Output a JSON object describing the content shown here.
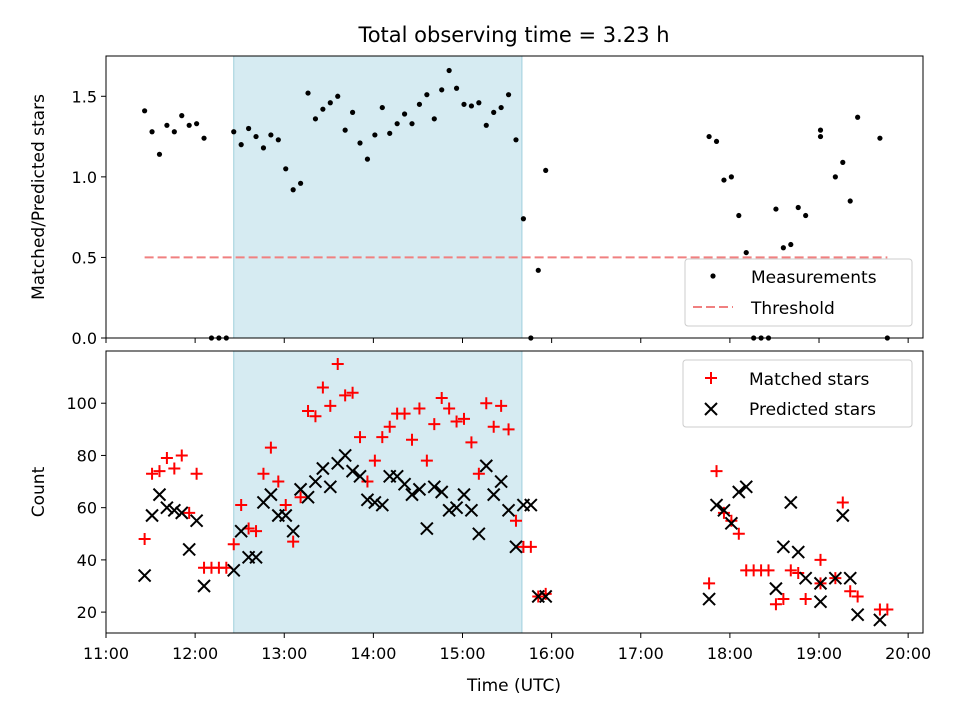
{
  "title": "Total observing time = 3.23 h",
  "x_axis": {
    "label": "Time (UTC)",
    "ticks": [
      "11:00",
      "12:00",
      "13:00",
      "14:00",
      "15:00",
      "16:00",
      "17:00",
      "18:00",
      "19:00",
      "20:00"
    ]
  },
  "chart_data": [
    {
      "type": "scatter",
      "ylabel": "Matched/Predicted stars",
      "ylim": [
        0,
        1.75
      ],
      "yticks": [
        "0.0",
        "0.5",
        "1.0",
        "1.5"
      ],
      "xlim": [
        "11:00",
        "20:10"
      ],
      "shaded_span": {
        "start": "12:26",
        "end": "15:40",
        "color": "#add8e6"
      },
      "legend": {
        "position": "lower-right",
        "entries": [
          "Measurements",
          "Threshold"
        ]
      },
      "threshold": {
        "name": "Threshold",
        "value": 0.5,
        "x_start": "11:26",
        "x_end": "19:46",
        "color": "#f08080"
      },
      "series": [
        {
          "name": "Measurements",
          "color": "#000000",
          "points": [
            [
              "11:26",
              1.41
            ],
            [
              "11:31",
              1.28
            ],
            [
              "11:36",
              1.14
            ],
            [
              "11:41",
              1.32
            ],
            [
              "11:46",
              1.28
            ],
            [
              "11:51",
              1.38
            ],
            [
              "11:56",
              1.32
            ],
            [
              "12:01",
              1.33
            ],
            [
              "12:06",
              1.24
            ],
            [
              "12:11",
              0
            ],
            [
              "12:16",
              0
            ],
            [
              "12:21",
              0
            ],
            [
              "12:26",
              1.28
            ],
            [
              "12:31",
              1.2
            ],
            [
              "12:36",
              1.3
            ],
            [
              "12:41",
              1.25
            ],
            [
              "12:46",
              1.18
            ],
            [
              "12:51",
              1.26
            ],
            [
              "12:56",
              1.23
            ],
            [
              "13:01",
              1.05
            ],
            [
              "13:06",
              0.92
            ],
            [
              "13:11",
              0.96
            ],
            [
              "13:16",
              1.52
            ],
            [
              "13:21",
              1.36
            ],
            [
              "13:26",
              1.42
            ],
            [
              "13:31",
              1.46
            ],
            [
              "13:36",
              1.5
            ],
            [
              "13:41",
              1.29
            ],
            [
              "13:46",
              1.4
            ],
            [
              "13:51",
              1.21
            ],
            [
              "13:56",
              1.11
            ],
            [
              "14:01",
              1.26
            ],
            [
              "14:06",
              1.43
            ],
            [
              "14:11",
              1.27
            ],
            [
              "14:16",
              1.33
            ],
            [
              "14:21",
              1.39
            ],
            [
              "14:26",
              1.33
            ],
            [
              "14:31",
              1.45
            ],
            [
              "14:36",
              1.51
            ],
            [
              "14:41",
              1.36
            ],
            [
              "14:46",
              1.54
            ],
            [
              "14:51",
              1.66
            ],
            [
              "14:56",
              1.55
            ],
            [
              "15:01",
              1.45
            ],
            [
              "15:06",
              1.44
            ],
            [
              "15:11",
              1.46
            ],
            [
              "15:16",
              1.32
            ],
            [
              "15:21",
              1.4
            ],
            [
              "15:26",
              1.43
            ],
            [
              "15:31",
              1.51
            ],
            [
              "15:36",
              1.23
            ],
            [
              "15:41",
              0.74
            ],
            [
              "15:46",
              0
            ],
            [
              "15:51",
              0.42
            ],
            [
              "15:56",
              1.04
            ],
            [
              "17:46",
              1.25
            ],
            [
              "17:51",
              1.22
            ],
            [
              "17:56",
              0.98
            ],
            [
              "18:01",
              1.0
            ],
            [
              "18:06",
              0.76
            ],
            [
              "18:11",
              0.53
            ],
            [
              "18:16",
              0
            ],
            [
              "18:21",
              0
            ],
            [
              "18:26",
              0
            ],
            [
              "18:31",
              0.8
            ],
            [
              "18:36",
              0.56
            ],
            [
              "18:41",
              0.58
            ],
            [
              "18:46",
              0.81
            ],
            [
              "18:51",
              0.76
            ],
            [
              "19:01",
              1.29
            ],
            [
              "19:01",
              1.25
            ],
            [
              "19:11",
              1.0
            ],
            [
              "19:16",
              1.09
            ],
            [
              "19:21",
              0.85
            ],
            [
              "19:26",
              1.37
            ],
            [
              "19:41",
              1.24
            ],
            [
              "19:46",
              0
            ]
          ]
        }
      ]
    },
    {
      "type": "scatter",
      "ylabel": "Count",
      "ylim": [
        12,
        120
      ],
      "yticks": [
        "20",
        "40",
        "60",
        "80",
        "100"
      ],
      "xlim": [
        "11:00",
        "20:10"
      ],
      "shaded_span": {
        "start": "12:26",
        "end": "15:40",
        "color": "#add8e6"
      },
      "legend": {
        "position": "top-right",
        "entries": [
          "Matched stars",
          "Predicted stars"
        ]
      },
      "series": [
        {
          "name": "Matched stars",
          "marker": "plus",
          "color": "#ff0000",
          "points": [
            [
              "11:26",
              48
            ],
            [
              "11:31",
              73
            ],
            [
              "11:36",
              74
            ],
            [
              "11:41",
              79
            ],
            [
              "11:46",
              75
            ],
            [
              "11:51",
              80
            ],
            [
              "11:56",
              58
            ],
            [
              "12:01",
              73
            ],
            [
              "12:06",
              37
            ],
            [
              "12:11",
              37
            ],
            [
              "12:16",
              37
            ],
            [
              "12:21",
              37
            ],
            [
              "12:26",
              46
            ],
            [
              "12:31",
              61
            ],
            [
              "12:36",
              52
            ],
            [
              "12:41",
              51
            ],
            [
              "12:46",
              73
            ],
            [
              "12:51",
              83
            ],
            [
              "12:56",
              70
            ],
            [
              "13:01",
              61
            ],
            [
              "13:06",
              47
            ],
            [
              "13:11",
              64
            ],
            [
              "13:16",
              97
            ],
            [
              "13:21",
              95
            ],
            [
              "13:26",
              106
            ],
            [
              "13:31",
              99
            ],
            [
              "13:36",
              115
            ],
            [
              "13:41",
              103
            ],
            [
              "13:46",
              104
            ],
            [
              "13:51",
              87
            ],
            [
              "13:56",
              70
            ],
            [
              "14:01",
              78
            ],
            [
              "14:06",
              87
            ],
            [
              "14:11",
              91
            ],
            [
              "14:16",
              96
            ],
            [
              "14:21",
              96
            ],
            [
              "14:26",
              86
            ],
            [
              "14:31",
              98
            ],
            [
              "14:36",
              78
            ],
            [
              "14:41",
              92
            ],
            [
              "14:46",
              102
            ],
            [
              "14:51",
              98
            ],
            [
              "14:56",
              93
            ],
            [
              "15:01",
              94
            ],
            [
              "15:06",
              85
            ],
            [
              "15:11",
              73
            ],
            [
              "15:16",
              100
            ],
            [
              "15:21",
              91
            ],
            [
              "15:26",
              99
            ],
            [
              "15:31",
              90
            ],
            [
              "15:36",
              55
            ],
            [
              "15:41",
              45
            ],
            [
              "15:46",
              45
            ],
            [
              "15:51",
              26
            ],
            [
              "15:56",
              27
            ],
            [
              "17:46",
              31
            ],
            [
              "17:51",
              74
            ],
            [
              "17:56",
              58
            ],
            [
              "18:01",
              55
            ],
            [
              "18:06",
              50
            ],
            [
              "18:11",
              36
            ],
            [
              "18:16",
              36
            ],
            [
              "18:21",
              36
            ],
            [
              "18:26",
              36
            ],
            [
              "18:31",
              23
            ],
            [
              "18:36",
              25
            ],
            [
              "18:41",
              36
            ],
            [
              "18:46",
              35
            ],
            [
              "18:51",
              25
            ],
            [
              "19:01",
              40
            ],
            [
              "19:01",
              31
            ],
            [
              "19:11",
              33
            ],
            [
              "19:16",
              62
            ],
            [
              "19:21",
              28
            ],
            [
              "19:26",
              26
            ],
            [
              "19:41",
              21
            ],
            [
              "19:46",
              21
            ]
          ]
        },
        {
          "name": "Predicted stars",
          "marker": "x",
          "color": "#000000",
          "points": [
            [
              "11:26",
              34
            ],
            [
              "11:31",
              57
            ],
            [
              "11:36",
              65
            ],
            [
              "11:41",
              60
            ],
            [
              "11:46",
              59
            ],
            [
              "11:51",
              58
            ],
            [
              "11:56",
              44
            ],
            [
              "12:01",
              55
            ],
            [
              "12:06",
              30
            ],
            [
              "12:26",
              36
            ],
            [
              "12:31",
              51
            ],
            [
              "12:36",
              41
            ],
            [
              "12:41",
              41
            ],
            [
              "12:46",
              62
            ],
            [
              "12:51",
              65
            ],
            [
              "12:56",
              57
            ],
            [
              "13:01",
              57
            ],
            [
              "13:06",
              51
            ],
            [
              "13:11",
              67
            ],
            [
              "13:16",
              64
            ],
            [
              "13:21",
              70
            ],
            [
              "13:26",
              75
            ],
            [
              "13:31",
              68
            ],
            [
              "13:36",
              77
            ],
            [
              "13:41",
              80
            ],
            [
              "13:46",
              74
            ],
            [
              "13:51",
              72
            ],
            [
              "13:56",
              63
            ],
            [
              "14:01",
              62
            ],
            [
              "14:06",
              61
            ],
            [
              "14:11",
              72
            ],
            [
              "14:16",
              72
            ],
            [
              "14:21",
              69
            ],
            [
              "14:26",
              65
            ],
            [
              "14:31",
              67
            ],
            [
              "14:36",
              52
            ],
            [
              "14:41",
              68
            ],
            [
              "14:46",
              66
            ],
            [
              "14:51",
              59
            ],
            [
              "14:56",
              60
            ],
            [
              "15:01",
              65
            ],
            [
              "15:06",
              59
            ],
            [
              "15:11",
              50
            ],
            [
              "15:16",
              76
            ],
            [
              "15:21",
              65
            ],
            [
              "15:26",
              70
            ],
            [
              "15:31",
              59
            ],
            [
              "15:36",
              45
            ],
            [
              "15:41",
              61
            ],
            [
              "15:46",
              61
            ],
            [
              "15:51",
              26
            ],
            [
              "15:56",
              26
            ],
            [
              "17:46",
              25
            ],
            [
              "17:51",
              61
            ],
            [
              "17:56",
              59
            ],
            [
              "18:01",
              54
            ],
            [
              "18:06",
              66
            ],
            [
              "18:11",
              68
            ],
            [
              "18:31",
              29
            ],
            [
              "18:36",
              45
            ],
            [
              "18:41",
              62
            ],
            [
              "18:46",
              43
            ],
            [
              "18:51",
              33
            ],
            [
              "19:01",
              31
            ],
            [
              "19:01",
              24
            ],
            [
              "19:11",
              33
            ],
            [
              "19:16",
              57
            ],
            [
              "19:21",
              33
            ],
            [
              "19:26",
              19
            ],
            [
              "19:41",
              17
            ]
          ]
        }
      ]
    }
  ]
}
